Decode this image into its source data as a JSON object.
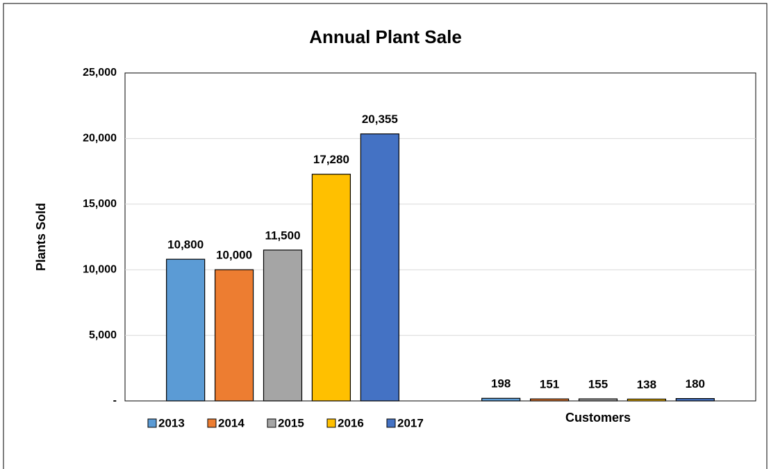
{
  "chart_data": {
    "type": "bar",
    "title": "Annual Plant Sale",
    "y_label": "Plants Sold",
    "categories": [
      null,
      "Customers"
    ],
    "series": [
      {
        "name": "2013",
        "color": "#5b9bd5",
        "values": [
          10800,
          198
        ],
        "value_labels": [
          "10,800",
          "198"
        ]
      },
      {
        "name": "2014",
        "color": "#ed7d31",
        "values": [
          10000,
          151
        ],
        "value_labels": [
          "10,000",
          "151"
        ]
      },
      {
        "name": "2015",
        "color": "#a5a5a5",
        "values": [
          11500,
          155
        ],
        "value_labels": [
          "11,500",
          "155"
        ]
      },
      {
        "name": "2016",
        "color": "#ffc000",
        "values": [
          17280,
          138
        ],
        "value_labels": [
          "17,280",
          "138"
        ]
      },
      {
        "name": "2017",
        "color": "#4472c4",
        "values": [
          20355,
          180
        ],
        "value_labels": [
          "20,355",
          "180"
        ]
      }
    ],
    "ylim": [
      0,
      25000
    ],
    "yticks": [
      {
        "value": 0,
        "label": "-"
      },
      {
        "value": 5000,
        "label": "5,000"
      },
      {
        "value": 10000,
        "label": "10,000"
      },
      {
        "value": 15000,
        "label": "15,000"
      },
      {
        "value": 20000,
        "label": "20,000"
      },
      {
        "value": 25000,
        "label": "25,000"
      }
    ],
    "grid": true,
    "legend": "bottom-left"
  }
}
